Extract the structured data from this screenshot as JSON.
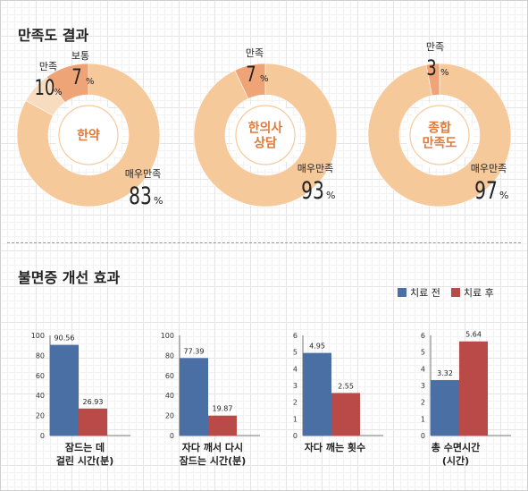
{
  "sections": {
    "satisfaction_title": "만족도 결과",
    "insomnia_title": "불면증 개선 효과"
  },
  "colors": {
    "donut_main": "#f6c99b",
    "donut_light": "#f8dcc0",
    "donut_dark": "#eea476",
    "center_text": "#e07a3a",
    "before": "#4a6fa5",
    "after": "#b94a48"
  },
  "chart_data": [
    {
      "type": "pie",
      "title": "한약",
      "slices": [
        {
          "label": "매우만족",
          "value": 83
        },
        {
          "label": "만족",
          "value": 10
        },
        {
          "label": "보통",
          "value": 7
        }
      ]
    },
    {
      "type": "pie",
      "title": "한의사\n상담",
      "slices": [
        {
          "label": "매우만족",
          "value": 93
        },
        {
          "label": "만족",
          "value": 7
        }
      ]
    },
    {
      "type": "pie",
      "title": "종합\n만족도",
      "slices": [
        {
          "label": "매우만족",
          "value": 97
        },
        {
          "label": "만족",
          "value": 3
        }
      ]
    },
    {
      "type": "bar",
      "title": "잠드는 데\n걸린 시간(분)",
      "categories": [
        "치료 전",
        "치료 후"
      ],
      "values": [
        90.56,
        26.93
      ],
      "ylim": [
        0,
        100
      ],
      "yticks": [
        0,
        20,
        40,
        60,
        80,
        100
      ]
    },
    {
      "type": "bar",
      "title": "자다 깨서 다시\n잠드는 시간(분)",
      "categories": [
        "치료 전",
        "치료 후"
      ],
      "values": [
        77.39,
        19.87
      ],
      "ylim": [
        0,
        100
      ],
      "yticks": [
        0,
        20,
        40,
        60,
        80,
        100
      ]
    },
    {
      "type": "bar",
      "title": "자다 깨는 횟수",
      "categories": [
        "치료 전",
        "치료 후"
      ],
      "values": [
        4.95,
        2.55
      ],
      "ylim": [
        0,
        6
      ],
      "yticks": [
        0,
        1,
        2,
        3,
        4,
        5,
        6
      ]
    },
    {
      "type": "bar",
      "title": "총 수면시간\n(시간)",
      "categories": [
        "치료 전",
        "치료 후"
      ],
      "values": [
        3.32,
        5.64
      ],
      "ylim": [
        0,
        6
      ],
      "yticks": [
        0,
        1,
        2,
        3,
        4,
        5,
        6
      ]
    }
  ],
  "legend": [
    {
      "label": "치료 전",
      "color": "#4a6fa5"
    },
    {
      "label": "치료 후",
      "color": "#b94a48"
    }
  ]
}
